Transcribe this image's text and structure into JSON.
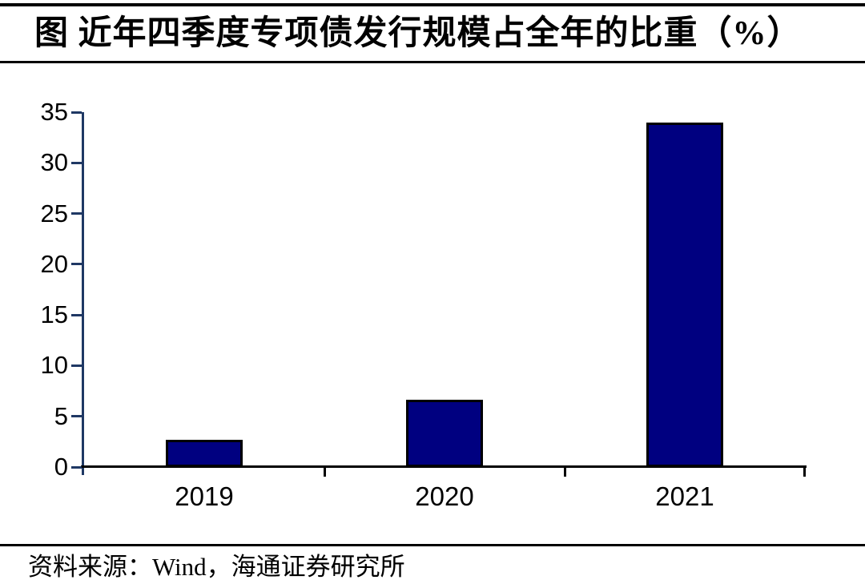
{
  "header": {
    "title": "图  近年四季度专项债发行规模占全年的比重（%）"
  },
  "footer": {
    "source": "资料来源：Wind，海通证券研究所"
  },
  "chart_data": {
    "type": "bar",
    "title": "图 近年四季度专项债发行规模占全年的比重（%）",
    "categories": [
      "2019",
      "2020",
      "2021"
    ],
    "values": [
      2.7,
      6.6,
      34
    ],
    "xlabel": "",
    "ylabel": "",
    "ylim": [
      0,
      35
    ],
    "yticks": [
      0,
      5,
      10,
      15,
      20,
      25,
      30,
      35
    ],
    "grid": false,
    "legend": "none",
    "bar_fill_color": "#000080",
    "bar_border_color": "#000000",
    "y_axis_color": "#1F3864",
    "x_axis_color": "#000000",
    "source": "资料来源：Wind，海通证券研究所"
  }
}
